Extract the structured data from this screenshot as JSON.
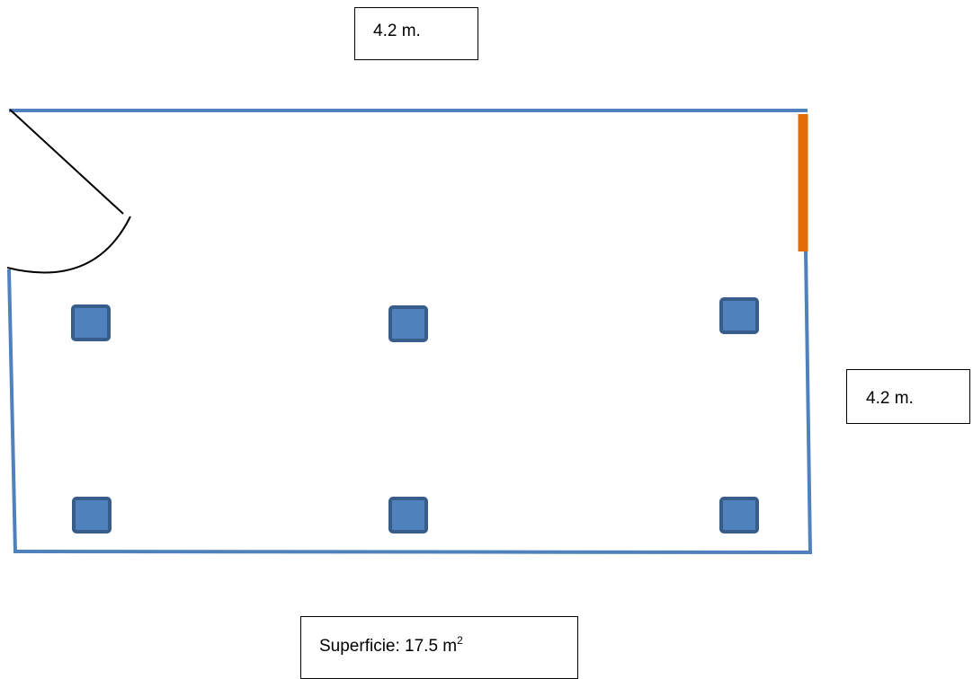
{
  "dimensions": {
    "top": "4.2 m.",
    "right": "4.2 m."
  },
  "area": {
    "label": "Superficie: 17.5 m",
    "exponent": "2"
  },
  "colors": {
    "wall": "#4f81bd",
    "window": "#e36c09",
    "fixture_fill": "#4f81bd",
    "fixture_border": "#385d8a",
    "door": "#000000"
  },
  "fixtures": {
    "count": 6,
    "rows": 2,
    "columns": 3
  }
}
